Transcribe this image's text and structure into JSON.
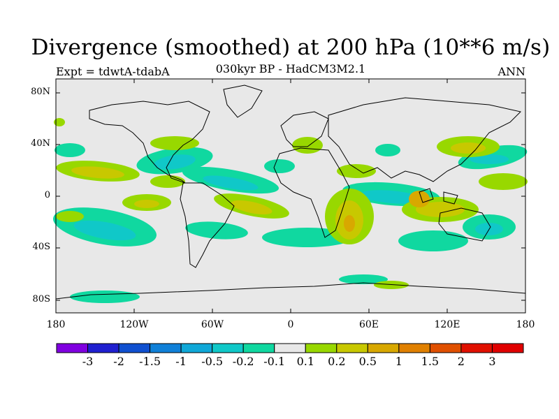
{
  "title": "Divergence (smoothed) at 200 hPa (10**6 m/s)",
  "subtitle": "030kyr BP - HadCM3M2.1",
  "left_label": "Expt = tdwtA-tdabA",
  "right_label": "ANN",
  "y_axis": [
    "80N",
    "40N",
    "0",
    "40S",
    "80S"
  ],
  "x_axis": [
    "180",
    "120W",
    "60W",
    "0",
    "60E",
    "120E",
    "180"
  ],
  "colorbar": {
    "labels": [
      "-3",
      "-2",
      "-1.5",
      "-1",
      "-0.5",
      "-0.2",
      "-0.1",
      "0.1",
      "0.2",
      "0.5",
      "1",
      "1.5",
      "2",
      "3"
    ],
    "colors": [
      "#8000e0",
      "#2020d0",
      "#1050d0",
      "#1080d8",
      "#10a8d8",
      "#10c8c8",
      "#10d8a0",
      "#e8e8e8",
      "#98d800",
      "#c8c800",
      "#d8a800",
      "#e08000",
      "#e05000",
      "#e01000",
      "#e00000"
    ]
  },
  "colors": {
    "background": "#e8e8e8",
    "negative": "#10c8c8",
    "pos_weak": "#98d800",
    "pos_mid": "#c8c800",
    "pos_strong": "#d8a800"
  }
}
